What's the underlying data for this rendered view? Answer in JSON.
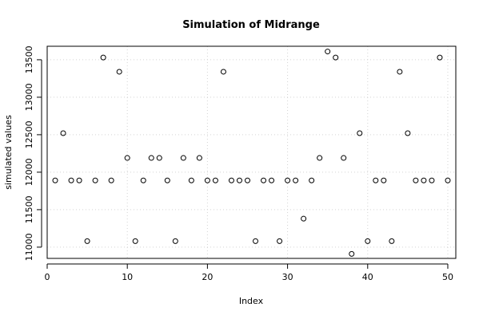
{
  "chart_data": {
    "type": "scatter",
    "title": "Simulation of Midrange",
    "xlabel": "Index",
    "ylabel": "simulated values",
    "xlim": [
      0,
      51
    ],
    "ylim": [
      10850,
      13680
    ],
    "x_ticks": [
      0,
      10,
      20,
      30,
      40,
      50
    ],
    "y_ticks": [
      11000,
      11500,
      12000,
      12500,
      13000,
      13500
    ],
    "grid": true,
    "x": [
      1,
      2,
      3,
      4,
      5,
      6,
      7,
      8,
      9,
      10,
      11,
      12,
      13,
      14,
      15,
      16,
      17,
      18,
      19,
      20,
      21,
      22,
      23,
      24,
      25,
      26,
      27,
      28,
      29,
      30,
      31,
      32,
      33,
      34,
      35,
      36,
      37,
      38,
      39,
      40,
      41,
      42,
      43,
      44,
      45,
      46,
      47,
      48,
      49,
      50
    ],
    "values": [
      11890,
      12520,
      11890,
      11890,
      11080,
      11890,
      13530,
      11890,
      13340,
      12190,
      11080,
      11890,
      12190,
      12190,
      11890,
      11080,
      12190,
      11890,
      12190,
      11890,
      11890,
      13340,
      11890,
      11890,
      11890,
      11080,
      11890,
      11890,
      11080,
      11890,
      11890,
      11380,
      11890,
      12190,
      13610,
      13530,
      12190,
      10910,
      12520,
      11080,
      11890,
      11890,
      11080,
      13340,
      12520,
      11890,
      11890,
      11890,
      13530,
      11890
    ]
  }
}
